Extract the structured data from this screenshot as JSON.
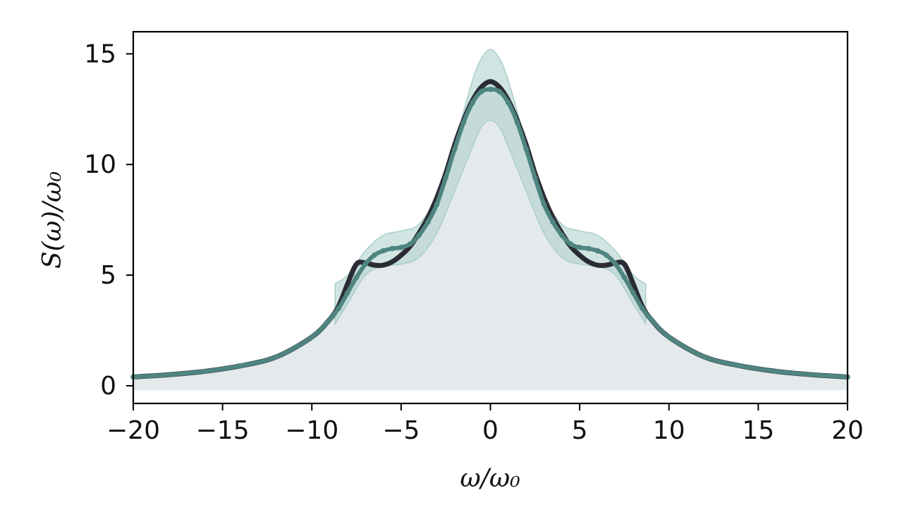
{
  "chart_data": {
    "type": "line",
    "xlabel": "ω/ω₀",
    "ylabel": "S(ω)/ω₀",
    "xlim": [
      -20,
      20
    ],
    "ylim": [
      -0.8,
      16
    ],
    "xticks": [
      -20,
      -15,
      -10,
      -5,
      0,
      5,
      10,
      15,
      20
    ],
    "xtick_labels": [
      "−20",
      "−15",
      "−10",
      "−5",
      "0",
      "5",
      "10",
      "15",
      "20"
    ],
    "yticks": [
      0,
      5,
      10,
      15
    ],
    "ytick_labels": [
      "0",
      "5",
      "10",
      "15"
    ],
    "grid": false,
    "legend": "none",
    "colors": {
      "background_fill": "#e4e9eb",
      "reference_line": "#2b2b35",
      "estimate_line": "#4f8580",
      "estimate_band": "#a9cfcb"
    },
    "background_fill": {
      "x": [
        -20,
        20
      ],
      "y_bottom": -0.2
    },
    "series": [
      {
        "x": [
          -20,
          -18,
          -16,
          -14,
          -12,
          -10,
          -9,
          -8.5,
          -8,
          -7.5,
          -7,
          -6.5,
          -6,
          -5.5,
          -5,
          -4.5,
          -4,
          -3.5,
          -3,
          -2.5,
          -2,
          -1.5,
          -1,
          -0.5,
          0,
          0.5,
          1,
          1.5,
          2,
          2.5,
          3,
          3.5,
          4,
          4.5,
          5,
          5.5,
          6,
          6.5,
          7,
          7.5,
          8,
          8.5,
          9,
          10,
          12,
          14,
          16,
          18,
          20
        ],
        "y": [
          0.4,
          0.5,
          0.65,
          0.9,
          1.3,
          2.2,
          3.0,
          3.6,
          4.6,
          5.5,
          5.55,
          5.45,
          5.45,
          5.6,
          5.9,
          6.3,
          6.9,
          7.6,
          8.5,
          9.6,
          10.9,
          12.0,
          12.9,
          13.5,
          13.75,
          13.5,
          12.9,
          12.0,
          10.9,
          9.6,
          8.5,
          7.6,
          6.9,
          6.3,
          5.9,
          5.6,
          5.45,
          5.45,
          5.55,
          5.5,
          4.6,
          3.6,
          3.0,
          2.2,
          1.3,
          0.9,
          0.65,
          0.5,
          0.4
        ]
      },
      {
        "x": [
          -20,
          -18,
          -16,
          -14,
          -12,
          -10,
          -9,
          -8.5,
          -8,
          -7.5,
          -7,
          -6.5,
          -6,
          -5.5,
          -5,
          -4.5,
          -4,
          -3.5,
          -3,
          -2.5,
          -2,
          -1.5,
          -1,
          -0.5,
          0,
          0.5,
          1,
          1.5,
          2,
          2.5,
          3,
          3.5,
          4,
          4.5,
          5,
          5.5,
          6,
          6.5,
          7,
          7.5,
          8,
          8.5,
          9,
          10,
          12,
          14,
          16,
          18,
          20
        ],
        "y": [
          0.4,
          0.5,
          0.65,
          0.9,
          1.3,
          2.2,
          3.0,
          3.5,
          4.2,
          4.9,
          5.5,
          5.9,
          6.1,
          6.2,
          6.25,
          6.4,
          6.8,
          7.4,
          8.2,
          9.4,
          10.7,
          11.9,
          12.8,
          13.3,
          13.4,
          13.3,
          12.8,
          11.9,
          10.7,
          9.4,
          8.2,
          7.4,
          6.8,
          6.4,
          6.25,
          6.2,
          6.1,
          5.9,
          5.5,
          4.9,
          4.2,
          3.5,
          3.0,
          2.2,
          1.3,
          0.9,
          0.65,
          0.5,
          0.4
        ],
        "band_x": [
          -8.7,
          -8,
          -7,
          -6,
          -5,
          -4,
          -3,
          -2,
          -1,
          -0.5,
          0,
          0.5,
          1,
          2,
          3,
          4,
          5,
          6,
          7,
          8,
          8.7
        ],
        "band_upper": [
          4.6,
          5.0,
          6.1,
          6.8,
          7.0,
          7.3,
          8.6,
          11.0,
          13.8,
          14.8,
          15.2,
          14.8,
          13.8,
          11.0,
          8.6,
          7.3,
          7.0,
          6.8,
          6.1,
          5.0,
          4.6
        ],
        "band_lower": [
          2.8,
          3.7,
          5.0,
          5.4,
          5.5,
          5.8,
          6.9,
          8.8,
          10.8,
          11.7,
          12.0,
          11.7,
          10.8,
          8.8,
          6.9,
          5.8,
          5.5,
          5.4,
          5.0,
          3.7,
          2.8
        ]
      }
    ]
  }
}
